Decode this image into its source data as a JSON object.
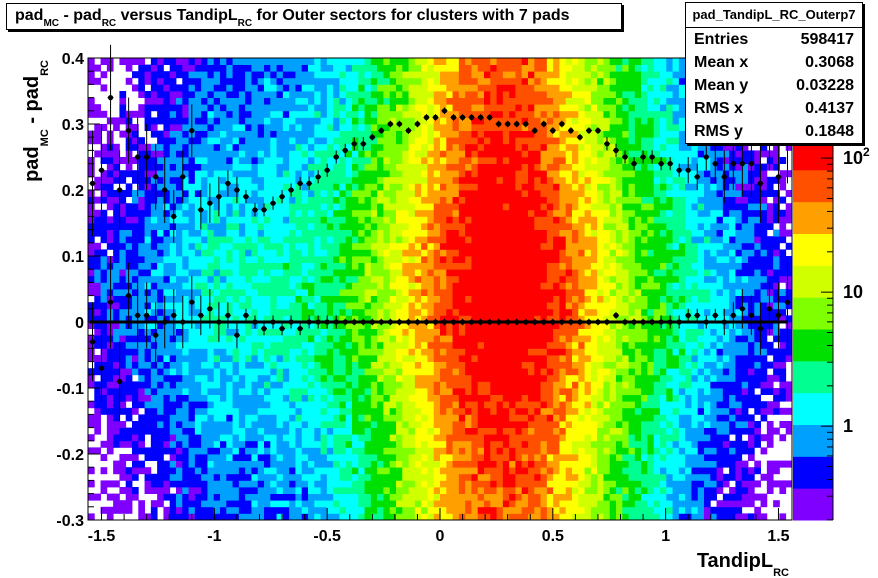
{
  "title": {
    "parts": [
      {
        "t": "pad",
        "sub": false
      },
      {
        "t": "MC",
        "sub": true
      },
      {
        "t": " - pad",
        "sub": false
      },
      {
        "t": "RC",
        "sub": true
      },
      {
        "t": " versus TandipL",
        "sub": false
      },
      {
        "t": "RC",
        "sub": true
      },
      {
        "t": " for Outer sectors for clusters with 7 pads",
        "sub": false
      }
    ]
  },
  "stats": {
    "name": "pad_TandipL_RC_Outerp7",
    "rows": [
      {
        "label": "Entries",
        "value": "598417"
      },
      {
        "label": "Mean x",
        "value": "0.3068"
      },
      {
        "label": "Mean y",
        "value": "0.03228"
      },
      {
        "label": "RMS x",
        "value": "0.4137"
      },
      {
        "label": "RMS y",
        "value": "0.1848"
      }
    ]
  },
  "chart_data": {
    "type": "heatmap",
    "title": "pad_MC - pad_RC versus TandipL_RC for Outer sectors for clusters with 7 pads",
    "xlabel": "TandipL_RC",
    "ylabel": "pad_MC - pad_RC",
    "xlim": [
      -1.56,
      1.56
    ],
    "ylim": [
      -0.3,
      0.4
    ],
    "x_ticks": [
      "-1.5",
      "-1",
      "-0.5",
      "0",
      "0.5",
      "1",
      "1.5"
    ],
    "y_ticks": [
      "-0.3",
      "-0.2",
      "-0.1",
      "0",
      "0.1",
      "0.2",
      "0.3",
      "0.4"
    ],
    "z_scale": "log",
    "z_ticks": [
      "1",
      "10",
      "10^2"
    ],
    "palette": [
      "#7f00ff",
      "#0000ff",
      "#00a0ff",
      "#00ffff",
      "#00ff90",
      "#00e000",
      "#80ff00",
      "#d0ff00",
      "#ffff00",
      "#ffa000",
      "#ff5000",
      "#ff0000"
    ],
    "grid": false,
    "profiles": [
      {
        "name": "mean",
        "x": [
          -1.54,
          -1.5,
          -1.46,
          -1.42,
          -1.38,
          -1.34,
          -1.3,
          -1.26,
          -1.22,
          -1.18,
          -1.14,
          -1.1,
          -1.06,
          -1.02,
          -0.98,
          -0.94,
          -0.9,
          -0.86,
          -0.82,
          -0.78,
          -0.74,
          -0.7,
          -0.66,
          -0.62,
          -0.58,
          -0.54,
          -0.5,
          -0.46,
          -0.42,
          -0.38,
          -0.34,
          -0.3,
          -0.26,
          -0.22,
          -0.18,
          -0.14,
          -0.1,
          -0.06,
          -0.02,
          0.02,
          0.06,
          0.1,
          0.14,
          0.18,
          0.22,
          0.26,
          0.3,
          0.34,
          0.38,
          0.42,
          0.46,
          0.5,
          0.54,
          0.58,
          0.62,
          0.66,
          0.7,
          0.74,
          0.78,
          0.82,
          0.86,
          0.9,
          0.94,
          0.98,
          1.02,
          1.06,
          1.1,
          1.14,
          1.18,
          1.22,
          1.26,
          1.3,
          1.34,
          1.38,
          1.42,
          1.46,
          1.5,
          1.54
        ],
        "y": [
          0.21,
          0.23,
          0.34,
          0.2,
          0.29,
          0.25,
          0.25,
          0.22,
          0.2,
          0.16,
          0.22,
          0.29,
          0.17,
          0.18,
          0.19,
          0.21,
          0.2,
          0.19,
          0.17,
          0.17,
          0.18,
          0.19,
          0.2,
          0.21,
          0.21,
          0.22,
          0.23,
          0.25,
          0.26,
          0.27,
          0.27,
          0.28,
          0.29,
          0.3,
          0.3,
          0.29,
          0.3,
          0.31,
          0.31,
          0.32,
          0.31,
          0.31,
          0.31,
          0.31,
          0.31,
          0.3,
          0.3,
          0.3,
          0.3,
          0.29,
          0.3,
          0.29,
          0.3,
          0.29,
          0.28,
          0.29,
          0.29,
          0.27,
          0.26,
          0.25,
          0.24,
          0.25,
          0.25,
          0.24,
          0.24,
          0.23,
          0.23,
          0.22,
          0.25,
          0.24,
          0.22,
          0.24,
          0.24,
          0.24,
          0.21,
          0.29,
          0.22,
          0.29
        ],
        "err": [
          0.08,
          0.07,
          0.08,
          0.06,
          0.05,
          0.06,
          0.05,
          0.05,
          0.05,
          0.04,
          0.04,
          0.04,
          0.03,
          0.03,
          0.03,
          0.02,
          0.02,
          0.01,
          0.01,
          0.01,
          0.01,
          0.01,
          0.01,
          0.01,
          0.01,
          0.01,
          0.01,
          0.01,
          0.01,
          0.01,
          0.01,
          0.005,
          0.005,
          0.005,
          0.005,
          0.005,
          0.005,
          0.005,
          0.005,
          0.005,
          0.005,
          0.005,
          0.005,
          0.005,
          0.005,
          0.005,
          0.005,
          0.005,
          0.005,
          0.005,
          0.005,
          0.005,
          0.005,
          0.005,
          0.005,
          0.005,
          0.005,
          0.01,
          0.01,
          0.01,
          0.01,
          0.01,
          0.01,
          0.01,
          0.01,
          0.01,
          0.02,
          0.02,
          0.02,
          0.03,
          0.04,
          0.04,
          0.05,
          0.05,
          0.06,
          0.06,
          0.07,
          0.08
        ]
      },
      {
        "name": "sigma",
        "x": [
          -1.54,
          -1.5,
          -1.46,
          -1.42,
          -1.38,
          -1.34,
          -1.3,
          -1.26,
          -1.22,
          -1.18,
          -1.14,
          -1.1,
          -1.06,
          -1.02,
          -0.98,
          -0.94,
          -0.9,
          -0.86,
          -0.82,
          -0.78,
          -0.74,
          -0.7,
          -0.66,
          -0.62,
          -0.58,
          -0.54,
          -0.5,
          -0.46,
          -0.42,
          -0.38,
          -0.34,
          -0.3,
          -0.26,
          -0.22,
          -0.18,
          -0.14,
          -0.1,
          -0.06,
          -0.02,
          0.02,
          0.06,
          0.1,
          0.14,
          0.18,
          0.22,
          0.26,
          0.3,
          0.34,
          0.38,
          0.42,
          0.46,
          0.5,
          0.54,
          0.58,
          0.62,
          0.66,
          0.7,
          0.74,
          0.78,
          0.82,
          0.86,
          0.9,
          0.94,
          0.98,
          1.02,
          1.06,
          1.1,
          1.14,
          1.18,
          1.22,
          1.26,
          1.3,
          1.34,
          1.38,
          1.42,
          1.46,
          1.5,
          1.54
        ],
        "y": [
          -0.03,
          -0.07,
          0.03,
          -0.09,
          0.04,
          0.01,
          0.01,
          -0.02,
          0.0,
          0.01,
          0.0,
          0.03,
          0.01,
          0.02,
          0.0,
          0.01,
          -0.02,
          0.01,
          0.0,
          -0.01,
          0.0,
          -0.01,
          0.0,
          -0.01,
          0.0,
          0.0,
          0.0,
          0.0,
          0.0,
          0.0,
          0.0,
          0.0,
          0.0,
          0.0,
          0.0,
          0.0,
          0.0,
          0.0,
          0.0,
          0.0,
          0.0,
          0.0,
          0.0,
          0.0,
          0.0,
          0.0,
          0.0,
          0.0,
          0.0,
          0.0,
          0.0,
          0.0,
          0.0,
          0.0,
          0.0,
          0.0,
          0.0,
          0.0,
          0.01,
          0.0,
          0.0,
          0.0,
          0.0,
          0.0,
          0.0,
          0.0,
          0.01,
          0.01,
          0.0,
          0.01,
          0.0,
          0.01,
          0.02,
          0.01,
          -0.01,
          0.02,
          0.01,
          0.03
        ],
        "err": [
          0.06,
          0.05,
          0.07,
          0.06,
          0.05,
          0.05,
          0.05,
          0.05,
          0.04,
          0.04,
          0.04,
          0.04,
          0.03,
          0.03,
          0.03,
          0.02,
          0.02,
          0.01,
          0.01,
          0.01,
          0.01,
          0.01,
          0.01,
          0.01,
          0.01,
          0.01,
          0.01,
          0.01,
          0.005,
          0.005,
          0.005,
          0.005,
          0.005,
          0.005,
          0.005,
          0.005,
          0.005,
          0.005,
          0.005,
          0.005,
          0.005,
          0.005,
          0.005,
          0.005,
          0.005,
          0.005,
          0.005,
          0.005,
          0.005,
          0.005,
          0.005,
          0.005,
          0.005,
          0.005,
          0.005,
          0.005,
          0.005,
          0.005,
          0.005,
          0.005,
          0.005,
          0.005,
          0.005,
          0.01,
          0.01,
          0.01,
          0.01,
          0.01,
          0.01,
          0.01,
          0.02,
          0.02,
          0.03,
          0.03,
          0.04,
          0.04,
          0.05,
          0.06
        ]
      }
    ],
    "fit_line_y": 0.0
  }
}
